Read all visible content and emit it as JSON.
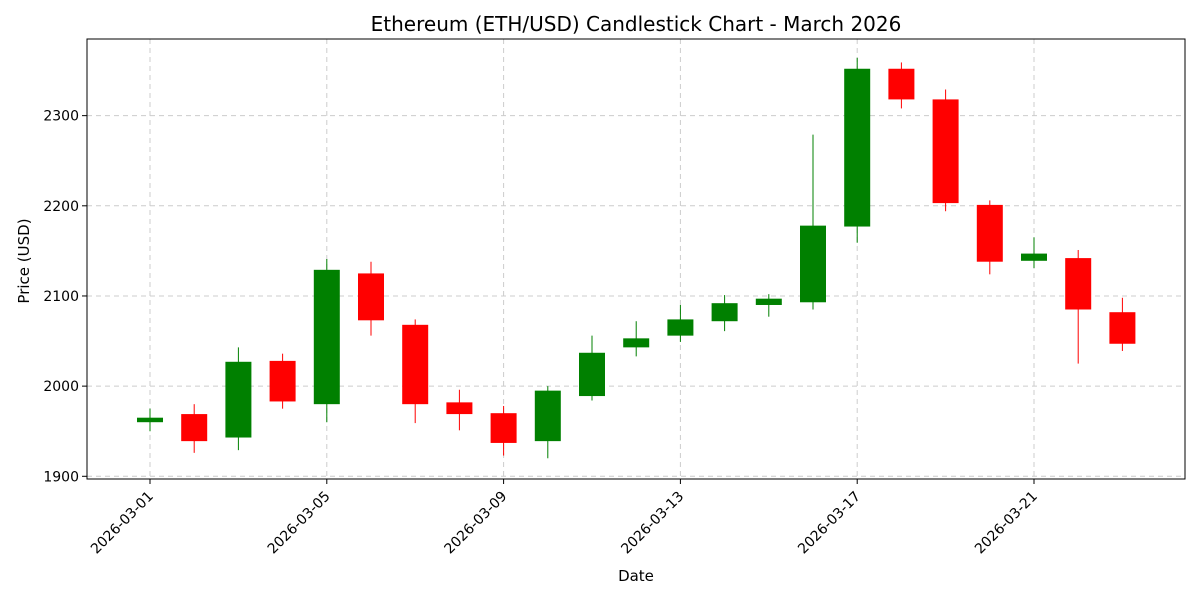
{
  "chart_data": {
    "type": "candlestick",
    "title": "Ethereum (ETH/USD) Candlestick Chart - March 2026",
    "xlabel": "Date",
    "ylabel": "Price (USD)",
    "ylim": [
      1897,
      2385
    ],
    "yticks": [
      1900,
      2000,
      2100,
      2200,
      2300
    ],
    "xticks": [
      "2026-03-01",
      "2026-03-05",
      "2026-03-09",
      "2026-03-13",
      "2026-03-17",
      "2026-03-21"
    ],
    "grid": true,
    "colors": {
      "up": "#008000",
      "down": "#ff0000"
    },
    "candles": [
      {
        "date": "2026-03-01",
        "open": 1960,
        "high": 1975,
        "low": 1950,
        "close": 1965
      },
      {
        "date": "2026-03-02",
        "open": 1969,
        "high": 1980,
        "low": 1926,
        "close": 1939
      },
      {
        "date": "2026-03-03",
        "open": 1943,
        "high": 2043,
        "low": 1929,
        "close": 2027
      },
      {
        "date": "2026-03-04",
        "open": 2028,
        "high": 2036,
        "low": 1975,
        "close": 1983
      },
      {
        "date": "2026-03-05",
        "open": 1980,
        "high": 2141,
        "low": 1960,
        "close": 2129
      },
      {
        "date": "2026-03-06",
        "open": 2125,
        "high": 2138,
        "low": 2056,
        "close": 2073
      },
      {
        "date": "2026-03-07",
        "open": 2068,
        "high": 2074,
        "low": 1959,
        "close": 1980
      },
      {
        "date": "2026-03-08",
        "open": 1982,
        "high": 1996,
        "low": 1951,
        "close": 1969
      },
      {
        "date": "2026-03-09",
        "open": 1970,
        "high": 1978,
        "low": 1923,
        "close": 1937
      },
      {
        "date": "2026-03-10",
        "open": 1939,
        "high": 2000,
        "low": 1920,
        "close": 1995
      },
      {
        "date": "2026-03-11",
        "open": 1989,
        "high": 2056,
        "low": 1984,
        "close": 2037
      },
      {
        "date": "2026-03-12",
        "open": 2043,
        "high": 2072,
        "low": 2033,
        "close": 2053
      },
      {
        "date": "2026-03-13",
        "open": 2056,
        "high": 2090,
        "low": 2049,
        "close": 2074
      },
      {
        "date": "2026-03-14",
        "open": 2072,
        "high": 2101,
        "low": 2061,
        "close": 2092
      },
      {
        "date": "2026-03-15",
        "open": 2090,
        "high": 2102,
        "low": 2077,
        "close": 2097
      },
      {
        "date": "2026-03-16",
        "open": 2093,
        "high": 2279,
        "low": 2085,
        "close": 2178
      },
      {
        "date": "2026-03-17",
        "open": 2177,
        "high": 2364,
        "low": 2159,
        "close": 2352
      },
      {
        "date": "2026-03-18",
        "open": 2352,
        "high": 2359,
        "low": 2308,
        "close": 2318
      },
      {
        "date": "2026-03-19",
        "open": 2318,
        "high": 2329,
        "low": 2194,
        "close": 2203
      },
      {
        "date": "2026-03-20",
        "open": 2201,
        "high": 2206,
        "low": 2124,
        "close": 2138
      },
      {
        "date": "2026-03-21",
        "open": 2139,
        "high": 2165,
        "low": 2131,
        "close": 2147
      },
      {
        "date": "2026-03-22",
        "open": 2142,
        "high": 2151,
        "low": 2025,
        "close": 2085
      },
      {
        "date": "2026-03-23",
        "open": 2082,
        "high": 2098,
        "low": 2039,
        "close": 2047
      }
    ]
  }
}
